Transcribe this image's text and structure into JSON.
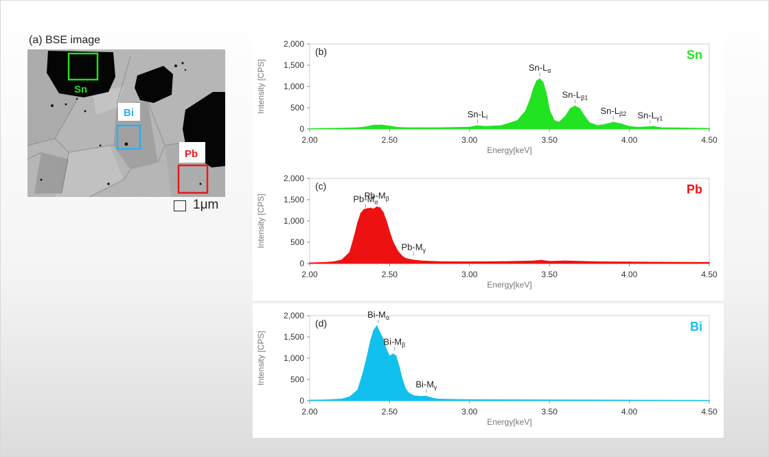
{
  "bse": {
    "label": "(a) BSE image",
    "roi_labels": {
      "sn": "Sn",
      "bi": "Bi",
      "pb": "Pb"
    },
    "scale_bar_text": "1μm"
  },
  "colors": {
    "sn": "#22e322",
    "pb": "#ee1111",
    "bi": "#12c0ee",
    "sn_box": "#20dd20",
    "bi_box": "#2ab0ee",
    "pb_box": "#e51a1a"
  },
  "chart_data": [
    {
      "type": "area",
      "panel_label": "(b)",
      "element": "Sn",
      "color": "#22e322",
      "xlabel": "Energy[keV]",
      "ylabel": "Intensity [CPS]",
      "xlim": [
        2.0,
        4.5
      ],
      "ylim": [
        0,
        2000
      ],
      "xticks": [
        "2.00",
        "2.50",
        "3.00",
        "3.50",
        "4.00",
        "4.50"
      ],
      "yticks": [
        "0",
        "500",
        "1,000",
        "1,500",
        "2,000"
      ],
      "peak_labels": [
        {
          "base": "Sn-L",
          "sub": "l",
          "x": 3.05,
          "y": 80
        },
        {
          "base": "Sn-L",
          "sub": "α",
          "x": 3.44,
          "y": 1180
        },
        {
          "base": "Sn-L",
          "sub": "β1",
          "x": 3.66,
          "y": 540
        },
        {
          "base": "Sn-L",
          "sub": "β2",
          "x": 3.9,
          "y": 160
        },
        {
          "base": "Sn-L",
          "sub": "γ1",
          "x": 4.13,
          "y": 60
        }
      ],
      "x": [
        2.0,
        2.1,
        2.2,
        2.3,
        2.35,
        2.4,
        2.45,
        2.5,
        2.55,
        2.6,
        2.7,
        2.8,
        2.9,
        3.0,
        3.05,
        3.1,
        3.2,
        3.3,
        3.35,
        3.38,
        3.4,
        3.42,
        3.44,
        3.46,
        3.48,
        3.5,
        3.53,
        3.56,
        3.6,
        3.63,
        3.66,
        3.69,
        3.72,
        3.75,
        3.8,
        3.85,
        3.9,
        3.95,
        4.0,
        4.05,
        4.1,
        4.15,
        4.2,
        4.3,
        4.4,
        4.5
      ],
      "y": [
        10,
        15,
        20,
        30,
        50,
        90,
        95,
        70,
        40,
        30,
        30,
        30,
        35,
        45,
        75,
        60,
        80,
        200,
        420,
        700,
        950,
        1130,
        1180,
        1100,
        850,
        450,
        200,
        160,
        300,
        480,
        540,
        480,
        300,
        150,
        80,
        110,
        160,
        120,
        60,
        40,
        50,
        60,
        30,
        25,
        20,
        15
      ]
    },
    {
      "type": "area",
      "panel_label": "(c)",
      "element": "Pb",
      "color": "#ee1111",
      "xlabel": "Energy[keV]",
      "ylabel": "Intensity [CPS]",
      "xlim": [
        2.0,
        4.5
      ],
      "ylim": [
        0,
        2000
      ],
      "xticks": [
        "2.00",
        "2.50",
        "3.00",
        "3.50",
        "4.00",
        "4.50"
      ],
      "yticks": [
        "0",
        "500",
        "1,000",
        "1,500",
        "2,000"
      ],
      "peak_labels": [
        {
          "base": "Pb-M",
          "sub": "α",
          "x": 2.35,
          "y": 1250
        },
        {
          "base": "Pb-M",
          "sub": "β",
          "x": 2.42,
          "y": 1330
        },
        {
          "base": "Pb-M",
          "sub": "γ",
          "x": 2.65,
          "y": 120
        }
      ],
      "x": [
        2.0,
        2.1,
        2.15,
        2.2,
        2.25,
        2.28,
        2.3,
        2.32,
        2.34,
        2.36,
        2.38,
        2.4,
        2.42,
        2.44,
        2.46,
        2.48,
        2.5,
        2.52,
        2.55,
        2.58,
        2.6,
        2.65,
        2.7,
        2.8,
        2.9,
        3.0,
        3.2,
        3.4,
        3.45,
        3.5,
        3.6,
        3.8,
        4.0,
        4.2,
        4.5
      ],
      "y": [
        15,
        25,
        40,
        80,
        260,
        650,
        950,
        1180,
        1270,
        1290,
        1300,
        1280,
        1330,
        1310,
        1200,
        1000,
        750,
        520,
        300,
        170,
        120,
        80,
        60,
        45,
        40,
        40,
        45,
        60,
        75,
        50,
        60,
        40,
        35,
        30,
        25
      ]
    },
    {
      "type": "area",
      "panel_label": "(d)",
      "element": "Bi",
      "color": "#12c0ee",
      "xlabel": "Energy[keV]",
      "ylabel": "Intensity [CPS]",
      "xlim": [
        2.0,
        4.5
      ],
      "ylim": [
        0,
        2000
      ],
      "xticks": [
        "2.00",
        "2.50",
        "3.00",
        "3.50",
        "4.00",
        "4.50"
      ],
      "yticks": [
        "0",
        "500",
        "1,000",
        "1,500",
        "2,000"
      ],
      "peak_labels": [
        {
          "base": "Bi-M",
          "sub": "α",
          "x": 2.43,
          "y": 1760
        },
        {
          "base": "Bi-M",
          "sub": "β",
          "x": 2.53,
          "y": 1120
        },
        {
          "base": "Bi-M",
          "sub": "γ",
          "x": 2.73,
          "y": 120
        }
      ],
      "x": [
        2.0,
        2.1,
        2.2,
        2.25,
        2.3,
        2.33,
        2.36,
        2.38,
        2.4,
        2.42,
        2.44,
        2.46,
        2.48,
        2.5,
        2.52,
        2.54,
        2.56,
        2.58,
        2.6,
        2.62,
        2.65,
        2.7,
        2.73,
        2.76,
        2.8,
        2.9,
        3.0,
        3.5,
        4.0,
        4.5
      ],
      "y": [
        15,
        20,
        40,
        90,
        250,
        600,
        1050,
        1400,
        1650,
        1760,
        1600,
        1450,
        1200,
        1050,
        1100,
        1060,
        800,
        500,
        280,
        180,
        120,
        100,
        110,
        70,
        40,
        30,
        25,
        20,
        15,
        10
      ]
    }
  ]
}
